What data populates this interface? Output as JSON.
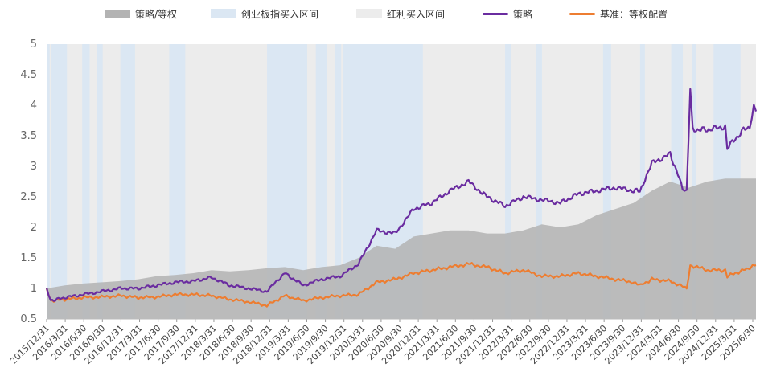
{
  "chart_data": {
    "type": "line",
    "title": "",
    "xlabel": "",
    "ylabel": "",
    "ylim": [
      0.5,
      5
    ],
    "y_ticks": [
      "5",
      "4.5",
      "4",
      "3.5",
      "3",
      "2.5",
      "2",
      "1.5",
      "1",
      "0.5"
    ],
    "x_range": [
      "2015-12-31",
      "2025-08-31"
    ],
    "x_tick_labels": [
      "2015/12/31",
      "2016/3/31",
      "2016/6/30",
      "2016/9/30",
      "2016/12/31",
      "2017/3/31",
      "2017/6/30",
      "2017/9/30",
      "2017/12/31",
      "2018/3/31",
      "2018/6/30",
      "2018/9/30",
      "2018/12/31",
      "2019/3/31",
      "2019/6/30",
      "2019/9/30",
      "2019/12/31",
      "2020/3/31",
      "2020/6/30",
      "2020/9/30",
      "2020/12/31",
      "2021/3/31",
      "2021/6/30",
      "2021/9/30",
      "2021/12/31",
      "2022/3/31",
      "2022/6/30",
      "2022/9/30",
      "2022/12/31",
      "2023/3/31",
      "2023/6/30",
      "2023/9/30",
      "2023/12/31",
      "2024/3/31",
      "2024/6/30",
      "2024/9/30",
      "2024/12/31",
      "2025/3/31",
      "2025/6/30"
    ],
    "legend": {
      "position": "top",
      "items": [
        {
          "label": "策略/等权",
          "kind": "area",
          "color": "#b3b3b3"
        },
        {
          "label": "创业板指买入区间",
          "kind": "band",
          "color": "#dbe7f3"
        },
        {
          "label": "红利买入区间",
          "kind": "band",
          "color": "#ececec"
        },
        {
          "label": "策略",
          "kind": "line",
          "color": "#6a2ca0"
        },
        {
          "label": "基准：等权配置",
          "kind": "line",
          "color": "#ed7d31"
        }
      ]
    },
    "series": [
      {
        "name": "策略",
        "color": "#6a2ca0",
        "type": "line",
        "points": [
          [
            "2015-12-31",
            1.0
          ],
          [
            "2016-01-20",
            0.8
          ],
          [
            "2016-03-31",
            0.85
          ],
          [
            "2016-06-30",
            0.9
          ],
          [
            "2016-09-30",
            0.95
          ],
          [
            "2016-12-31",
            1.0
          ],
          [
            "2017-03-31",
            1.0
          ],
          [
            "2017-06-30",
            1.05
          ],
          [
            "2017-09-30",
            1.1
          ],
          [
            "2017-12-31",
            1.12
          ],
          [
            "2018-03-31",
            1.18
          ],
          [
            "2018-06-30",
            1.05
          ],
          [
            "2018-09-30",
            1.0
          ],
          [
            "2018-12-31",
            0.95
          ],
          [
            "2019-02-28",
            1.15
          ],
          [
            "2019-03-31",
            1.25
          ],
          [
            "2019-06-30",
            1.05
          ],
          [
            "2019-09-30",
            1.15
          ],
          [
            "2019-12-31",
            1.2
          ],
          [
            "2020-03-31",
            1.4
          ],
          [
            "2020-06-30",
            1.95
          ],
          [
            "2020-09-30",
            1.9
          ],
          [
            "2020-12-31",
            2.3
          ],
          [
            "2021-03-31",
            2.4
          ],
          [
            "2021-06-30",
            2.6
          ],
          [
            "2021-09-30",
            2.75
          ],
          [
            "2021-12-31",
            2.5
          ],
          [
            "2022-03-31",
            2.35
          ],
          [
            "2022-06-30",
            2.5
          ],
          [
            "2022-09-30",
            2.45
          ],
          [
            "2022-12-31",
            2.4
          ],
          [
            "2023-03-31",
            2.55
          ],
          [
            "2023-06-30",
            2.6
          ],
          [
            "2023-09-30",
            2.65
          ],
          [
            "2023-12-31",
            2.6
          ],
          [
            "2024-01-31",
            2.6
          ],
          [
            "2024-03-31",
            3.05
          ],
          [
            "2024-06-30",
            3.2
          ],
          [
            "2024-08-31",
            2.65
          ],
          [
            "2024-09-20",
            2.6
          ],
          [
            "2024-10-08",
            4.3
          ],
          [
            "2024-10-20",
            3.6
          ],
          [
            "2024-12-31",
            3.6
          ],
          [
            "2025-03-31",
            3.65
          ],
          [
            "2025-04-10",
            3.3
          ],
          [
            "2025-06-30",
            3.6
          ],
          [
            "2025-07-31",
            3.65
          ],
          [
            "2025-08-20",
            4.0
          ],
          [
            "2025-08-31",
            3.9
          ]
        ]
      },
      {
        "name": "基准：等权配置",
        "color": "#ed7d31",
        "type": "line",
        "points": [
          [
            "2015-12-31",
            1.0
          ],
          [
            "2016-01-20",
            0.8
          ],
          [
            "2016-03-31",
            0.82
          ],
          [
            "2016-06-30",
            0.85
          ],
          [
            "2016-09-30",
            0.86
          ],
          [
            "2016-12-31",
            0.88
          ],
          [
            "2017-03-31",
            0.85
          ],
          [
            "2017-06-30",
            0.86
          ],
          [
            "2017-09-30",
            0.9
          ],
          [
            "2017-12-31",
            0.9
          ],
          [
            "2018-03-31",
            0.88
          ],
          [
            "2018-06-30",
            0.82
          ],
          [
            "2018-09-30",
            0.78
          ],
          [
            "2018-12-31",
            0.72
          ],
          [
            "2019-03-31",
            0.88
          ],
          [
            "2019-06-30",
            0.8
          ],
          [
            "2019-09-30",
            0.85
          ],
          [
            "2019-12-31",
            0.88
          ],
          [
            "2020-03-31",
            0.9
          ],
          [
            "2020-06-30",
            1.1
          ],
          [
            "2020-09-30",
            1.15
          ],
          [
            "2020-12-31",
            1.25
          ],
          [
            "2021-03-31",
            1.3
          ],
          [
            "2021-06-30",
            1.35
          ],
          [
            "2021-09-30",
            1.4
          ],
          [
            "2021-12-31",
            1.35
          ],
          [
            "2022-03-31",
            1.25
          ],
          [
            "2022-06-30",
            1.3
          ],
          [
            "2022-09-30",
            1.2
          ],
          [
            "2022-12-31",
            1.2
          ],
          [
            "2023-03-31",
            1.25
          ],
          [
            "2023-06-30",
            1.2
          ],
          [
            "2023-09-30",
            1.15
          ],
          [
            "2023-12-31",
            1.1
          ],
          [
            "2024-02-05",
            1.05
          ],
          [
            "2024-03-31",
            1.15
          ],
          [
            "2024-06-30",
            1.12
          ],
          [
            "2024-09-20",
            1.0
          ],
          [
            "2024-10-08",
            1.38
          ],
          [
            "2024-12-31",
            1.3
          ],
          [
            "2025-03-31",
            1.3
          ],
          [
            "2025-04-10",
            1.2
          ],
          [
            "2025-06-30",
            1.3
          ],
          [
            "2025-08-31",
            1.38
          ]
        ]
      },
      {
        "name": "策略/等权",
        "color": "#b3b3b3",
        "type": "area",
        "points": [
          [
            "2015-12-31",
            1.0
          ],
          [
            "2016-03-31",
            1.05
          ],
          [
            "2016-06-30",
            1.08
          ],
          [
            "2016-09-30",
            1.1
          ],
          [
            "2016-12-31",
            1.12
          ],
          [
            "2017-03-31",
            1.15
          ],
          [
            "2017-06-30",
            1.2
          ],
          [
            "2017-09-30",
            1.22
          ],
          [
            "2017-12-31",
            1.25
          ],
          [
            "2018-03-31",
            1.3
          ],
          [
            "2018-06-30",
            1.28
          ],
          [
            "2018-09-30",
            1.3
          ],
          [
            "2018-12-31",
            1.33
          ],
          [
            "2019-03-31",
            1.35
          ],
          [
            "2019-06-30",
            1.3
          ],
          [
            "2019-09-30",
            1.35
          ],
          [
            "2019-12-31",
            1.38
          ],
          [
            "2020-03-31",
            1.5
          ],
          [
            "2020-06-30",
            1.7
          ],
          [
            "2020-09-30",
            1.65
          ],
          [
            "2020-12-31",
            1.85
          ],
          [
            "2021-03-31",
            1.9
          ],
          [
            "2021-06-30",
            1.95
          ],
          [
            "2021-09-30",
            1.95
          ],
          [
            "2021-12-31",
            1.9
          ],
          [
            "2022-03-31",
            1.9
          ],
          [
            "2022-06-30",
            1.95
          ],
          [
            "2022-09-30",
            2.05
          ],
          [
            "2022-12-31",
            2.0
          ],
          [
            "2023-03-31",
            2.05
          ],
          [
            "2023-06-30",
            2.2
          ],
          [
            "2023-09-30",
            2.3
          ],
          [
            "2023-12-31",
            2.4
          ],
          [
            "2024-03-31",
            2.6
          ],
          [
            "2024-06-30",
            2.75
          ],
          [
            "2024-09-30",
            2.65
          ],
          [
            "2024-12-31",
            2.75
          ],
          [
            "2025-03-31",
            2.8
          ],
          [
            "2025-06-30",
            2.8
          ],
          [
            "2025-08-31",
            2.8
          ]
        ]
      }
    ],
    "bands": [
      {
        "series": "创业板指买入区间",
        "color": "#dbe7f3",
        "ranges": [
          [
            "2016-01-01",
            "2016-01-15"
          ],
          [
            "2016-01-22",
            "2016-04-10"
          ],
          [
            "2016-06-25",
            "2016-08-01"
          ],
          [
            "2016-09-05",
            "2016-10-05"
          ],
          [
            "2017-01-01",
            "2017-03-15"
          ],
          [
            "2017-09-01",
            "2017-11-20"
          ],
          [
            "2019-01-01",
            "2019-07-20"
          ],
          [
            "2019-09-01",
            "2019-10-25"
          ],
          [
            "2019-12-05",
            "2020-01-05"
          ],
          [
            "2020-01-15",
            "2021-02-15"
          ],
          [
            "2022-03-31",
            "2022-04-30"
          ],
          [
            "2022-09-01",
            "2022-10-01"
          ],
          [
            "2023-08-01",
            "2023-09-10"
          ],
          [
            "2024-02-01",
            "2024-02-25"
          ],
          [
            "2024-07-05",
            "2024-09-01"
          ],
          [
            "2024-10-15",
            "2024-11-05"
          ],
          [
            "2025-02-01",
            "2025-06-15"
          ]
        ]
      },
      {
        "series": "红利买入区间",
        "color": "#ececec",
        "ranges": [
          [
            "2015-12-31",
            "2025-08-31"
          ]
        ]
      }
    ]
  }
}
